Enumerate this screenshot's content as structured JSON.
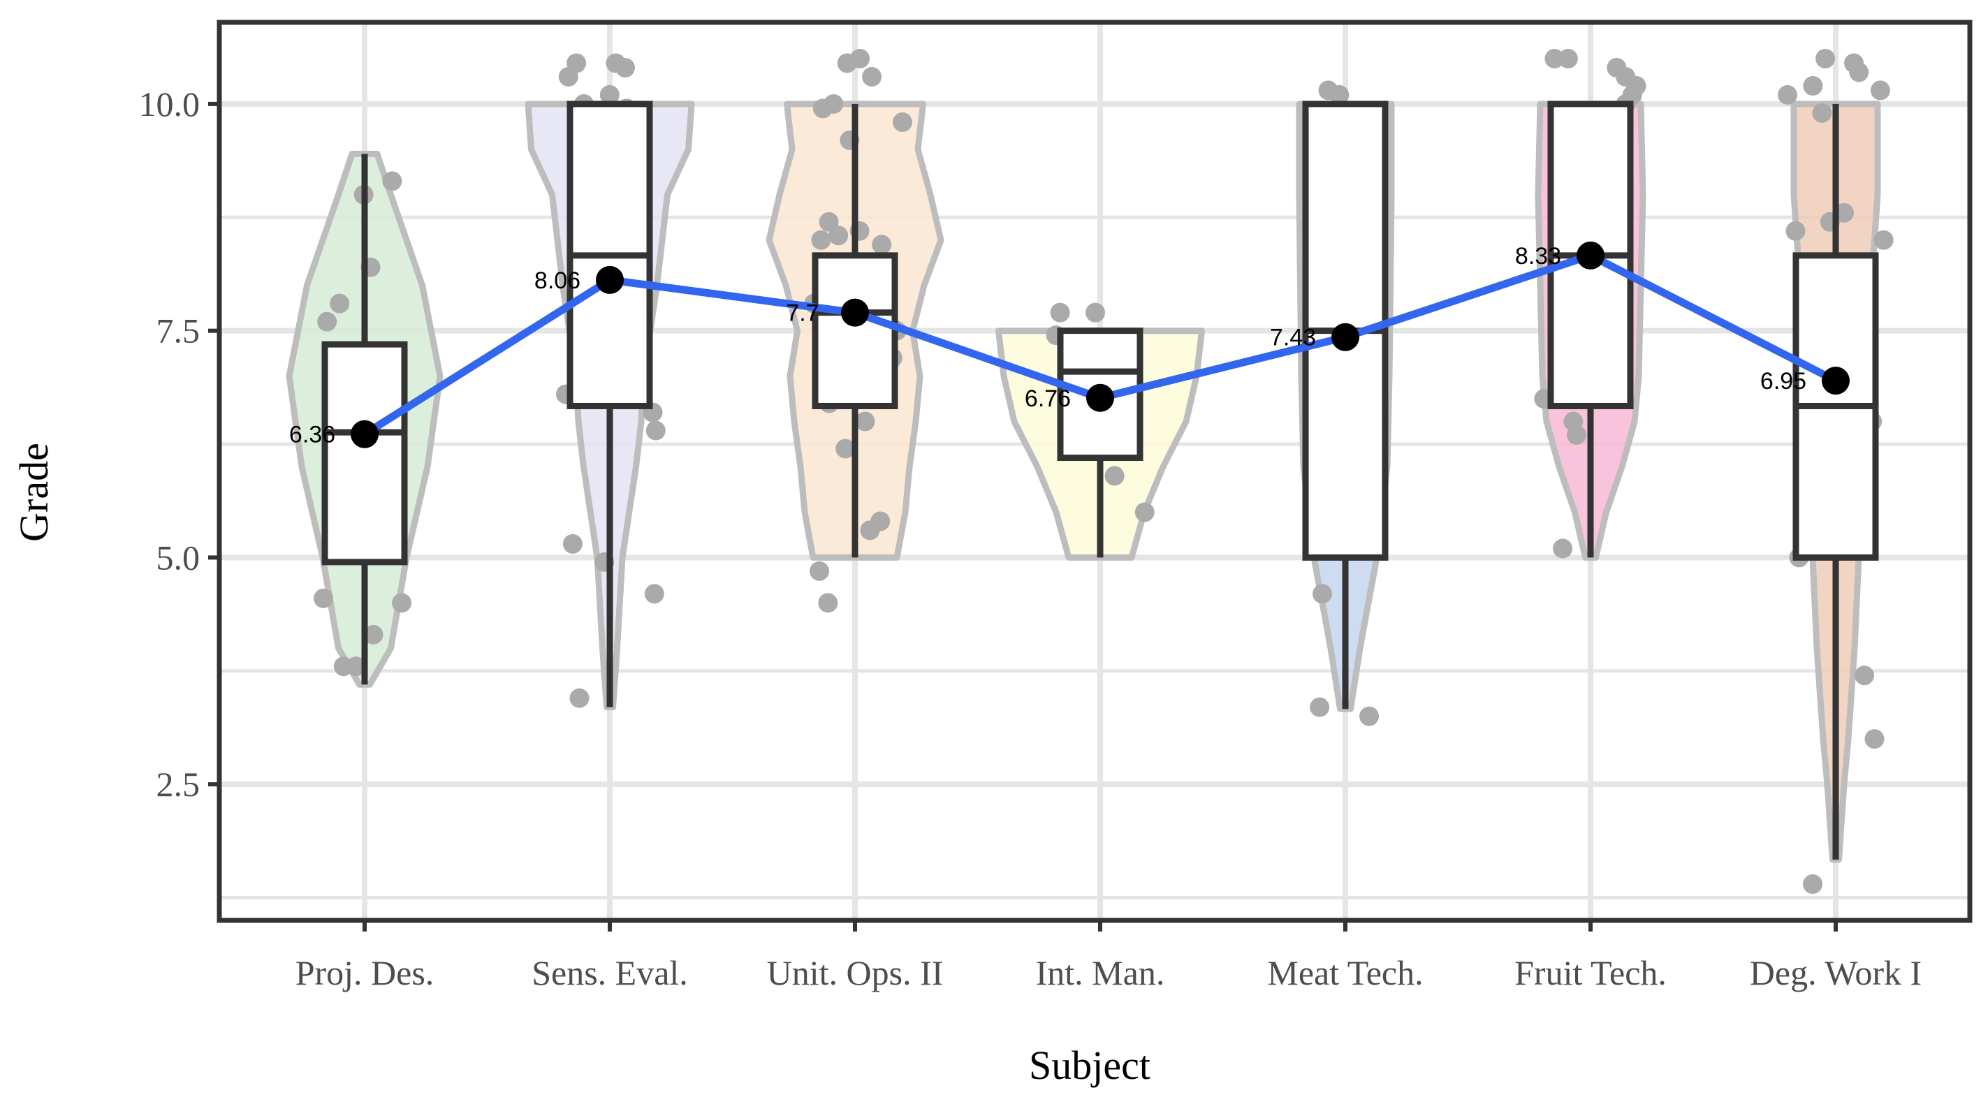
{
  "chart_data": {
    "type": "violin-box",
    "xlabel": "Subject",
    "ylabel": "Grade",
    "ylim": [
      1.0,
      10.9
    ],
    "yticks": [
      "2.5",
      "5.0",
      "7.5",
      "10.0"
    ],
    "ytick_values": [
      2.5,
      5.0,
      7.5,
      10.0
    ],
    "grid": true,
    "categories": [
      "Proj. Des.",
      "Sens. Eval.",
      "Unit. Ops. II",
      "Int. Man.",
      "Meat Tech.",
      "Fruit Tech.",
      "Deg. Work I"
    ],
    "colors": {
      "violin_fills": [
        "#d6ecd6",
        "#e3e3f3",
        "#fce6d2",
        "#fdfbd8",
        "#c5d6ee",
        "#f8b9d6",
        "#f0cdb7"
      ],
      "violin_stroke": "#bdbdbd",
      "box_stroke": "#333333",
      "mean_line": "#3366ee",
      "mean_point": "#000000",
      "jitter": "#aaaaaa",
      "grid": "#e5e5e5",
      "panel_border": "#333333"
    },
    "boxes": [
      {
        "min": 3.6,
        "q1": 4.95,
        "median": 6.38,
        "q3": 7.35,
        "max": 9.45
      },
      {
        "min": 3.35,
        "q1": 6.67,
        "median": 8.33,
        "q3": 10.0,
        "max": 10.0
      },
      {
        "min": 5.0,
        "q1": 6.67,
        "median": 7.7,
        "q3": 8.33,
        "max": 10.0
      },
      {
        "min": 5.0,
        "q1": 6.1,
        "median": 7.05,
        "q3": 7.5,
        "max": 7.5
      },
      {
        "min": 3.33,
        "q1": 5.0,
        "median": 7.5,
        "q3": 10.0,
        "max": 10.0
      },
      {
        "min": 5.0,
        "q1": 6.67,
        "median": 8.33,
        "q3": 10.0,
        "max": 10.0
      },
      {
        "min": 1.67,
        "q1": 5.0,
        "median": 6.67,
        "q3": 8.33,
        "max": 10.0
      }
    ],
    "violins": [
      [
        [
          3.6,
          0.05
        ],
        [
          4.0,
          0.25
        ],
        [
          5.0,
          0.4
        ],
        [
          6.0,
          0.6
        ],
        [
          7.0,
          0.72
        ],
        [
          8.0,
          0.55
        ],
        [
          9.0,
          0.25
        ],
        [
          9.45,
          0.12
        ]
      ],
      [
        [
          3.35,
          0.03
        ],
        [
          4.0,
          0.07
        ],
        [
          5.0,
          0.12
        ],
        [
          6.0,
          0.25
        ],
        [
          6.5,
          0.3
        ],
        [
          7.0,
          0.32
        ],
        [
          8.0,
          0.45
        ],
        [
          9.0,
          0.55
        ],
        [
          9.5,
          0.75
        ],
        [
          10.0,
          0.78
        ]
      ],
      [
        [
          5.0,
          0.4
        ],
        [
          5.5,
          0.48
        ],
        [
          6.0,
          0.52
        ],
        [
          6.5,
          0.58
        ],
        [
          7.0,
          0.62
        ],
        [
          7.5,
          0.55
        ],
        [
          8.0,
          0.66
        ],
        [
          8.5,
          0.82
        ],
        [
          9.0,
          0.72
        ],
        [
          9.5,
          0.6
        ],
        [
          10.0,
          0.65
        ]
      ],
      [
        [
          5.0,
          0.3
        ],
        [
          5.5,
          0.42
        ],
        [
          6.0,
          0.6
        ],
        [
          6.5,
          0.82
        ],
        [
          7.0,
          0.92
        ],
        [
          7.5,
          0.97
        ]
      ],
      [
        [
          3.33,
          0.05
        ],
        [
          4.0,
          0.14
        ],
        [
          5.0,
          0.3
        ],
        [
          6.0,
          0.4
        ],
        [
          7.0,
          0.42
        ],
        [
          8.0,
          0.43
        ],
        [
          9.0,
          0.44
        ],
        [
          10.0,
          0.44
        ]
      ],
      [
        [
          5.0,
          0.05
        ],
        [
          5.5,
          0.15
        ],
        [
          6.0,
          0.3
        ],
        [
          6.5,
          0.42
        ],
        [
          7.0,
          0.46
        ],
        [
          8.0,
          0.48
        ],
        [
          9.0,
          0.5
        ],
        [
          10.0,
          0.48
        ]
      ],
      [
        [
          1.67,
          0.03
        ],
        [
          2.5,
          0.08
        ],
        [
          3.0,
          0.12
        ],
        [
          4.0,
          0.18
        ],
        [
          5.0,
          0.22
        ],
        [
          6.0,
          0.28
        ],
        [
          7.0,
          0.32
        ],
        [
          8.0,
          0.34
        ],
        [
          9.0,
          0.4
        ],
        [
          10.0,
          0.4
        ]
      ]
    ],
    "jitter_points": [
      [
        9.0,
        8.2,
        7.6,
        7.8,
        6.5,
        6.4,
        4.55,
        4.5,
        4.15,
        3.8,
        3.8,
        9.15
      ],
      [
        10.4,
        10.3,
        10.1,
        10.0,
        9.95,
        10.45,
        10.45,
        7.1,
        6.9,
        6.8,
        6.6,
        6.4,
        5.15,
        4.95,
        4.6,
        3.45
      ],
      [
        10.45,
        10.5,
        10.3,
        10.0,
        9.95,
        9.8,
        9.6,
        8.7,
        8.6,
        8.55,
        8.5,
        8.45,
        8.2,
        8.0,
        7.8,
        7.5,
        7.3,
        7.2,
        6.9,
        6.7,
        6.5,
        6.2,
        5.4,
        5.3,
        4.85,
        4.5
      ],
      [
        7.7,
        7.7,
        7.45,
        7.3,
        6.5,
        5.9,
        5.5
      ],
      [
        10.15,
        10.1,
        9.85,
        8.5,
        8.0,
        7.5,
        5.4,
        4.6,
        3.35,
        3.25
      ],
      [
        10.5,
        10.5,
        10.4,
        10.3,
        10.2,
        10.1,
        10.0,
        8.8,
        8.7,
        8.5,
        6.75,
        6.5,
        6.35,
        5.1
      ],
      [
        10.5,
        10.45,
        10.35,
        10.2,
        10.15,
        10.1,
        9.9,
        8.8,
        8.7,
        8.6,
        8.5,
        7.9,
        6.5,
        6.2,
        5.45,
        5.0,
        3.7,
        3.0,
        1.4
      ]
    ],
    "means": [
      6.36,
      8.06,
      7.7,
      6.76,
      7.43,
      8.33,
      6.95
    ],
    "mean_labels": [
      "6.36",
      "8.06",
      "7.7",
      "6.76",
      "7.43",
      "8.33",
      "6.95"
    ]
  }
}
